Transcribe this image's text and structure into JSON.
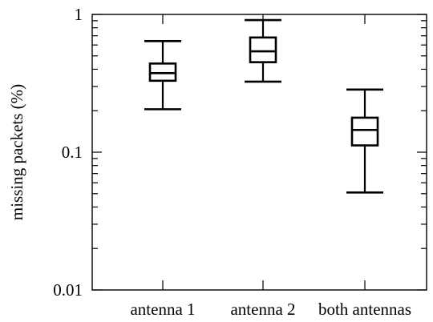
{
  "chart_data": {
    "type": "boxplot",
    "title": "",
    "xlabel": "",
    "ylabel": "missing packets (%)",
    "yscale": "log",
    "ylim": [
      0.01,
      1
    ],
    "yticks": [
      {
        "value": 0.01,
        "label": "0.01"
      },
      {
        "value": 0.1,
        "label": "0.1"
      },
      {
        "value": 1,
        "label": "1"
      }
    ],
    "grid": false,
    "legend": "none",
    "categories": [
      "antenna 1",
      "antenna 2",
      "both antennas"
    ],
    "boxes": [
      {
        "category": "antenna 1",
        "min": 0.205,
        "q1": 0.33,
        "median": 0.375,
        "q3": 0.44,
        "max": 0.64
      },
      {
        "category": "antenna 2",
        "min": 0.325,
        "q1": 0.45,
        "median": 0.54,
        "q3": 0.68,
        "max": 0.91
      },
      {
        "category": "both antennas",
        "min": 0.051,
        "q1": 0.112,
        "median": 0.145,
        "q3": 0.178,
        "max": 0.285
      }
    ],
    "colors": {
      "stroke": "#000000",
      "background": "#ffffff"
    }
  }
}
